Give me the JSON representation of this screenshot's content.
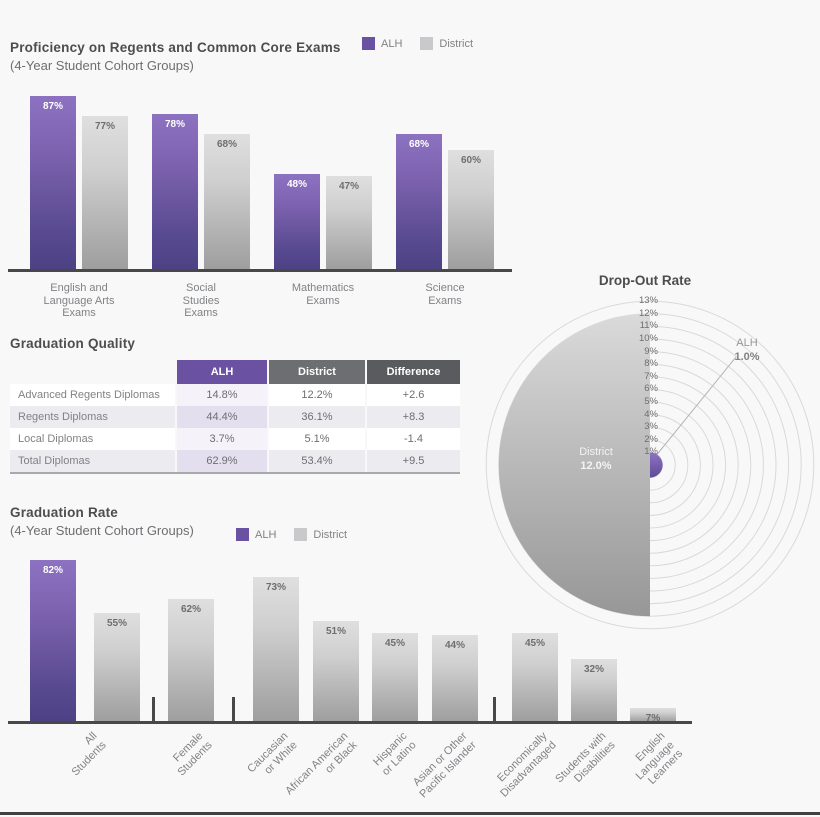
{
  "proficiency": {
    "title": "Proficiency on Regents and Common Core Exams",
    "subtitle": "(4-Year Student Cohort Groups)",
    "legend": {
      "alh": "ALH",
      "district": "District"
    }
  },
  "graduation_quality": {
    "title": "Graduation Quality"
  },
  "dropout": {
    "title": "Drop-Out Rate",
    "alh_name": "ALH",
    "alh_value": "1.0%",
    "district_name": "District",
    "district_value": "12.0%"
  },
  "graduation_rate": {
    "title": "Graduation Rate",
    "subtitle": "(4-Year Student Cohort Groups)",
    "legend": {
      "alh": "ALH",
      "district": "District"
    }
  },
  "colors": {
    "alh_purple": "#6a51a2",
    "district_gray": "#c9c9cb",
    "axis_dark": "#47484a",
    "title_text": "#4d4d4f",
    "label_gray": "#808285"
  },
  "chart_data": [
    {
      "id": "proficiency",
      "type": "bar",
      "title": "Proficiency on Regents and Common Core Exams",
      "subtitle": "(4-Year Student Cohort Groups)",
      "categories": [
        "English and Language Arts Exams",
        "Social Studies Exams",
        "Mathematics Exams",
        "Science Exams"
      ],
      "axis_labels": [
        "English and\nLanguage Arts\nExams",
        "Social\nStudies\nExams",
        "Mathematics\nExams",
        "Science\nExams"
      ],
      "series": [
        {
          "name": "ALH",
          "values": [
            87,
            78,
            48,
            68
          ]
        },
        {
          "name": "District",
          "values": [
            77,
            68,
            47,
            60
          ]
        }
      ],
      "unit": "%",
      "ylim": [
        0,
        100
      ],
      "grid": false,
      "legend_position": "top-right"
    },
    {
      "id": "graduation_quality",
      "type": "table",
      "title": "Graduation Quality",
      "columns": [
        "",
        "ALH",
        "District",
        "Difference"
      ],
      "rows": [
        [
          "Advanced Regents Diplomas",
          "14.8%",
          "12.2%",
          "+2.6"
        ],
        [
          "Regents Diplomas",
          "44.4%",
          "36.1%",
          "+8.3"
        ],
        [
          "Local Diplomas",
          "3.7%",
          "5.1%",
          "-1.4"
        ],
        [
          "Total Diplomas",
          "62.9%",
          "53.4%",
          "+9.5"
        ]
      ]
    },
    {
      "id": "dropout",
      "type": "radial",
      "title": "Drop-Out Rate",
      "unit": "%",
      "rings_pct": [
        1,
        2,
        3,
        4,
        5,
        6,
        7,
        8,
        9,
        10,
        11,
        12,
        13
      ],
      "series": [
        {
          "name": "District",
          "value": 12.0
        },
        {
          "name": "ALH",
          "value": 1.0
        }
      ]
    },
    {
      "id": "graduation_rate",
      "type": "bar",
      "title": "Graduation Rate",
      "subtitle": "(4-Year Student Cohort Groups)",
      "unit": "%",
      "ylim": [
        0,
        100
      ],
      "grid": false,
      "categories": [
        "All Students",
        "Female Students",
        "Caucasian or White",
        "African American or Black",
        "Hispanic or Latino",
        "Asian or Other Pacific Islander",
        "Economically Disadvantaged",
        "Students with Disabilities",
        "English Language Learners"
      ],
      "axis_labels": [
        "All\nStudents",
        "Female\nStudents",
        "Caucasian\nor White",
        "African American\nor Black",
        "Hispanic\nor Latino",
        "Asian or Other\nPacific Islander",
        "Economically\nDisadvantaged",
        "Students with\nDisabilities",
        "English\nLanguage\nLearners"
      ],
      "bars": [
        {
          "category": "All Students",
          "series": "ALH",
          "value": 82
        },
        {
          "category": "All Students",
          "series": "District",
          "value": 55
        },
        {
          "category": "Female Students",
          "series": "District",
          "value": 62
        },
        {
          "category": "Caucasian or White",
          "series": "District",
          "value": 73
        },
        {
          "category": "African American or Black",
          "series": "District",
          "value": 51
        },
        {
          "category": "Hispanic or Latino",
          "series": "District",
          "value": 45
        },
        {
          "category": "Asian or Other Pacific Islander",
          "series": "District",
          "value": 44
        },
        {
          "category": "Economically Disadvantaged",
          "series": "District",
          "value": 45
        },
        {
          "category": "Students with Disabilities",
          "series": "District",
          "value": 32
        },
        {
          "category": "English Language Learners",
          "series": "District",
          "value": 7
        }
      ]
    }
  ]
}
